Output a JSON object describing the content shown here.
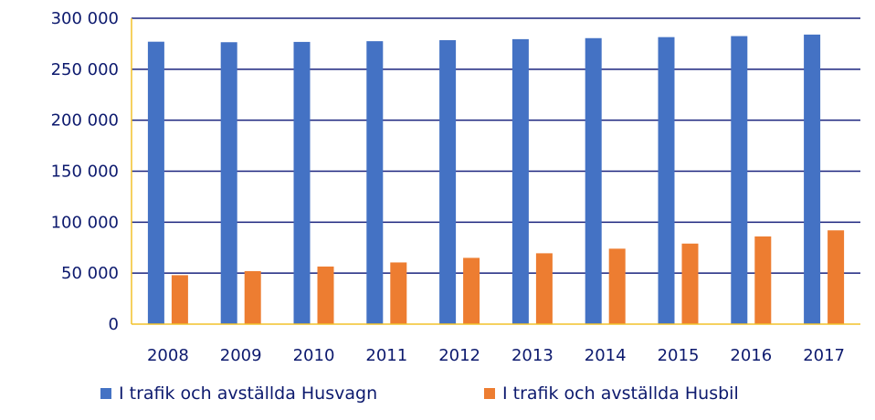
{
  "chart_data": {
    "type": "bar",
    "categories": [
      "2008",
      "2009",
      "2010",
      "2011",
      "2012",
      "2013",
      "2014",
      "2015",
      "2016",
      "2017"
    ],
    "series": [
      {
        "name": "I trafik och avställda Husvagn",
        "color": "#4472c4",
        "values": [
          277000,
          276500,
          276800,
          277500,
          278500,
          279500,
          280500,
          281500,
          282500,
          284000
        ]
      },
      {
        "name": "I trafik och avställda Husbil",
        "color": "#ed7d31",
        "values": [
          48000,
          52000,
          56500,
          60500,
          65000,
          69500,
          74000,
          79000,
          86000,
          92000
        ]
      }
    ],
    "yticks": [
      "0",
      "50 000",
      "100 000",
      "150 000",
      "200 000",
      "250 000",
      "300 000"
    ],
    "ylim": [
      0,
      300000
    ],
    "grid": true,
    "legend": "bottom",
    "colors": {
      "axis": "#f2c22a",
      "text": "#0d1a6e"
    }
  }
}
